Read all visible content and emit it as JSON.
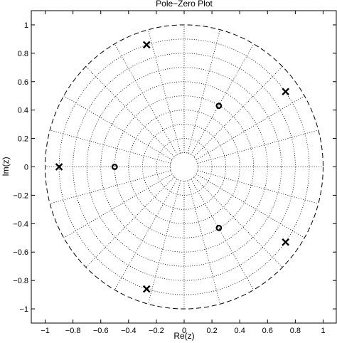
{
  "chart_data": {
    "type": "scatter",
    "title": "Pole−Zero Plot",
    "xlabel": "Re(z)",
    "ylabel": "Im(z)",
    "xlim": [
      -1.1,
      1.1
    ],
    "ylim": [
      -1.1,
      1.1
    ],
    "xticks": [
      -1,
      -0.8,
      -0.6,
      -0.4,
      -0.2,
      0,
      0.2,
      0.4,
      0.6,
      0.8,
      1
    ],
    "xtick_labels": [
      "−1",
      "−0.8",
      "−0.6",
      "−0.4",
      "−0.2",
      "0",
      "0.2",
      "0.4",
      "0.6",
      "0.8",
      "1"
    ],
    "yticks": [
      -1,
      -0.8,
      -0.6,
      -0.4,
      -0.2,
      0,
      0.2,
      0.4,
      0.6,
      0.8,
      1
    ],
    "ytick_labels": [
      "−1",
      "−0.8",
      "−0.6",
      "−0.4",
      "−0.2",
      "0",
      "0.2",
      "0.4",
      "0.6",
      "0.8",
      "1"
    ],
    "grid": "polar",
    "grid_radii": [
      0.1,
      0.2,
      0.3,
      0.4,
      0.5,
      0.6,
      0.7,
      0.8,
      0.9
    ],
    "grid_angles_deg": [
      0,
      15,
      30,
      45,
      60,
      75,
      90,
      105,
      120,
      135,
      150,
      165,
      180,
      195,
      210,
      225,
      240,
      255,
      270,
      285,
      300,
      315,
      330,
      345
    ],
    "unit_circle": true,
    "poles": [
      {
        "re": -0.27,
        "im": 0.86
      },
      {
        "re": -0.27,
        "im": -0.86
      },
      {
        "re": 0.73,
        "im": 0.53
      },
      {
        "re": 0.73,
        "im": -0.53
      },
      {
        "re": -0.9,
        "im": 0
      }
    ],
    "zeros": [
      {
        "re": 0.25,
        "im": 0.43
      },
      {
        "re": 0.25,
        "im": -0.43
      },
      {
        "re": -0.5,
        "im": 0
      }
    ]
  }
}
